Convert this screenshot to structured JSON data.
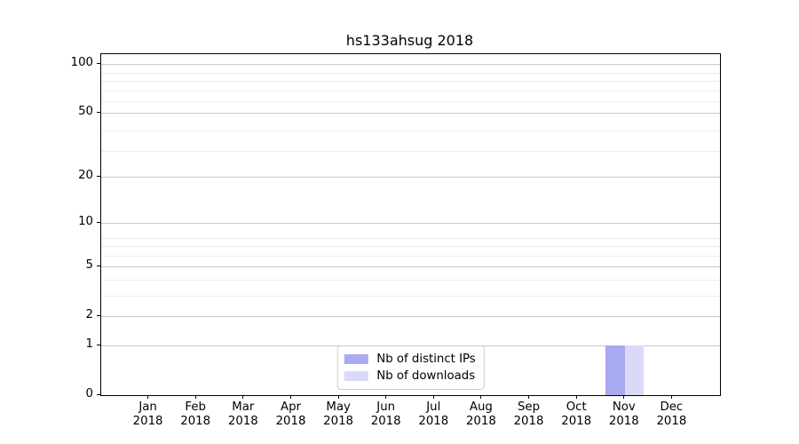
{
  "chart_data": {
    "type": "bar",
    "title": "hs133ahsug 2018",
    "categories": [
      "Jan",
      "Feb",
      "Mar",
      "Apr",
      "May",
      "Jun",
      "Jul",
      "Aug",
      "Sep",
      "Oct",
      "Nov",
      "Dec"
    ],
    "category_year": "2018",
    "series": [
      {
        "name": "Nb of distinct IPs",
        "color": "#aaaaf0",
        "values": [
          0,
          0,
          0,
          0,
          0,
          0,
          0,
          0,
          0,
          0,
          1,
          0
        ]
      },
      {
        "name": "Nb of downloads",
        "color": "#dadaf8",
        "values": [
          0,
          0,
          0,
          0,
          0,
          0,
          0,
          0,
          0,
          0,
          1,
          0
        ]
      }
    ],
    "xlabel": "",
    "ylabel": "",
    "yscale": "log1p",
    "yticks": [
      0,
      1,
      2,
      5,
      10,
      20,
      50,
      100
    ],
    "minor_yticks": [
      3,
      4,
      6,
      7,
      8,
      29,
      39,
      59,
      69,
      79,
      89
    ],
    "ylim": [
      0,
      115
    ],
    "grid": true,
    "legend_position": "lower center",
    "colors": {
      "axis": "#000000",
      "grid_major": "#c9c9c9",
      "grid_minor": "#ededed",
      "background": "#ffffff"
    }
  }
}
